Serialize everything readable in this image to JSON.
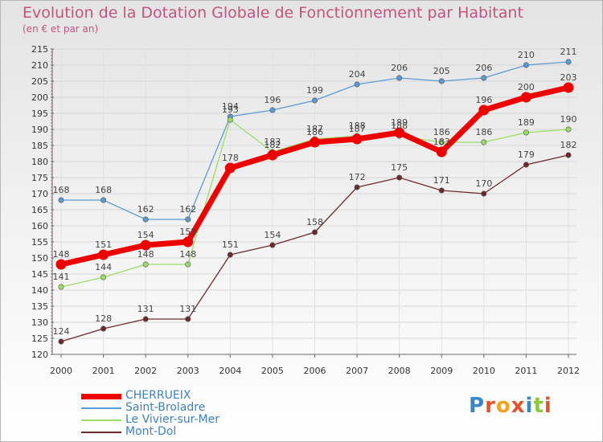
{
  "header": {
    "title": "Evolution de la Dotation Globale de Fonctionnement par Habitant",
    "subtitle": "(en € et par an)"
  },
  "logo": {
    "text": "Proxiti",
    "letters": [
      "P",
      "r",
      "o",
      "x",
      "i",
      "t",
      "i"
    ],
    "colors": [
      "#3a87c8",
      "#e8502c",
      "#f4a21b",
      "#e8502c",
      "#3a87c8",
      "#8dc63f",
      "#e8502c"
    ]
  },
  "chart_data": {
    "type": "line",
    "title": "Evolution de la Dotation Globale de Fonctionnement par Habitant",
    "subtitle": "(en € et par an)",
    "xlabel": "",
    "ylabel": "",
    "x": [
      "2000",
      "2001",
      "2002",
      "2003",
      "2004",
      "2005",
      "2006",
      "2007",
      "2008",
      "2009",
      "2010",
      "2011",
      "2012"
    ],
    "ylim": [
      120,
      215
    ],
    "yticks": [
      120,
      125,
      130,
      135,
      140,
      145,
      150,
      155,
      160,
      165,
      170,
      175,
      180,
      185,
      190,
      195,
      200,
      205,
      210,
      215
    ],
    "grid": true,
    "legend_position": "bottom-left",
    "series": [
      {
        "name": "Saint-Broladre",
        "color": "#5b9bd5",
        "values": [
          168,
          168,
          162,
          162,
          194,
          196,
          199,
          204,
          206,
          205,
          206,
          210,
          211
        ]
      },
      {
        "name": "Le Vivier-sur-Mer",
        "color": "#99dd66",
        "values": [
          141,
          144,
          148,
          148,
          193,
          183,
          187,
          188,
          188,
          186,
          186,
          189,
          190
        ]
      },
      {
        "name": "Mont-Dol",
        "color": "#6e2a2a",
        "values": [
          124,
          128,
          131,
          131,
          151,
          154,
          158,
          172,
          175,
          171,
          170,
          179,
          182
        ]
      },
      {
        "name": "CHERRUEIX",
        "color": "#ee0000",
        "values": [
          148,
          151,
          154,
          155,
          178,
          182,
          186,
          187,
          189,
          183,
          196,
          200,
          203
        ]
      }
    ],
    "legend_order": [
      "CHERRUEIX",
      "Saint-Broladre",
      "Le Vivier-sur-Mer",
      "Mont-Dol"
    ]
  }
}
